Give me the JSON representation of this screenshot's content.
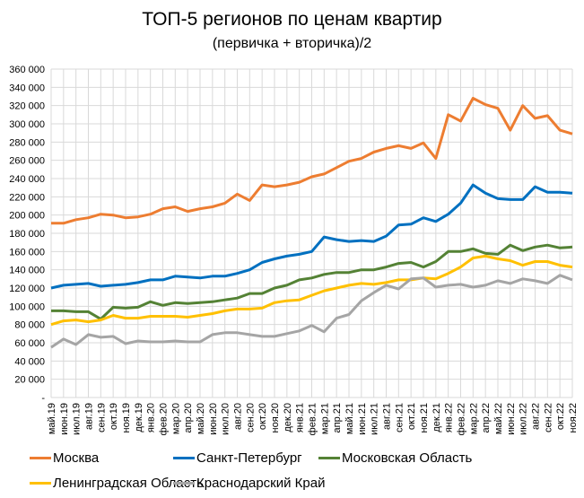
{
  "chart_data": {
    "type": "line",
    "title": "ТОП-5 регионов по ценам квартир",
    "subtitle": "(первичка + вторичка)/2",
    "ylim": [
      0,
      360000
    ],
    "yticks": [
      0,
      20000,
      40000,
      60000,
      80000,
      100000,
      120000,
      140000,
      160000,
      180000,
      200000,
      220000,
      240000,
      260000,
      280000,
      300000,
      320000,
      340000,
      360000
    ],
    "ytick_labels": [
      "-",
      "20 000",
      "40 000",
      "60 000",
      "80 000",
      "100 000",
      "120 000",
      "140 000",
      "160 000",
      "180 000",
      "200 000",
      "220 000",
      "240 000",
      "260 000",
      "280 000",
      "300 000",
      "320 000",
      "340 000",
      "360 000"
    ],
    "grid": true,
    "legend": "bottom",
    "categories": [
      "май.19",
      "июн.19",
      "июл.19",
      "авг.19",
      "сен.19",
      "окт.19",
      "ноя.19",
      "дек.19",
      "янв.20",
      "фев.20",
      "мар.20",
      "апр.20",
      "май.20",
      "июн.20",
      "июл.20",
      "авг.20",
      "сен.20",
      "окт.20",
      "ноя.20",
      "дек.20",
      "янв.21",
      "фев.21",
      "мар.21",
      "апр.21",
      "май.21",
      "июн.21",
      "июл.21",
      "авг.21",
      "сен.21",
      "окт.21",
      "ноя.21",
      "дек.21",
      "янв.22",
      "фев.22",
      "мар.22",
      "апр.22",
      "май.22",
      "июн.22",
      "июл.22",
      "авг.22",
      "сен.22",
      "окт.22",
      "ноя.22"
    ],
    "series": [
      {
        "name": "Москва",
        "color": "#ED7D31",
        "values": [
          191000,
          191000,
          195000,
          197000,
          201000,
          200000,
          197000,
          198000,
          201000,
          207000,
          209000,
          204000,
          207000,
          209000,
          213000,
          223000,
          216000,
          233000,
          231000,
          233000,
          236000,
          242000,
          245000,
          252000,
          259000,
          262000,
          269000,
          273000,
          276000,
          273000,
          279000,
          262000,
          310000,
          303000,
          328000,
          321000,
          317000,
          293000,
          320000,
          306000,
          309000,
          293000,
          289000
        ]
      },
      {
        "name": "Санкт-Петербург",
        "color": "#0070C0",
        "values": [
          120000,
          123000,
          124000,
          125000,
          122000,
          123000,
          124000,
          126000,
          129000,
          129000,
          133000,
          132000,
          131000,
          133000,
          133000,
          136000,
          140000,
          148000,
          152000,
          155000,
          157000,
          160000,
          176000,
          173000,
          171000,
          172000,
          171000,
          177000,
          189000,
          190000,
          197000,
          193000,
          201000,
          213000,
          233000,
          224000,
          218000,
          217000,
          217000,
          231000,
          225000,
          225000,
          224000
        ]
      },
      {
        "name": "Московская Область",
        "color": "#548235",
        "values": [
          95000,
          95000,
          94000,
          94000,
          86000,
          99000,
          98000,
          99000,
          105000,
          101000,
          104000,
          103000,
          104000,
          105000,
          107000,
          109000,
          114000,
          114000,
          120000,
          123000,
          129000,
          131000,
          135000,
          137000,
          137000,
          140000,
          140000,
          143000,
          147000,
          148000,
          143000,
          149000,
          160000,
          160000,
          163000,
          158000,
          157000,
          167000,
          161000,
          165000,
          167000,
          164000,
          165000
        ]
      },
      {
        "name": "Ленинградская Область",
        "color": "#FFC000",
        "values": [
          80000,
          84000,
          85000,
          83000,
          85000,
          90000,
          87000,
          87000,
          89000,
          89000,
          89000,
          88000,
          90000,
          92000,
          95000,
          97000,
          97000,
          98000,
          104000,
          106000,
          107000,
          112000,
          117000,
          120000,
          123000,
          125000,
          124000,
          126000,
          129000,
          129000,
          131000,
          130000,
          136000,
          143000,
          153000,
          155000,
          152000,
          150000,
          145000,
          149000,
          149000,
          145000,
          143000
        ]
      },
      {
        "name": "Краснодарский Край",
        "color": "#A5A5A5",
        "values": [
          55000,
          64000,
          58000,
          69000,
          66000,
          67000,
          59000,
          62000,
          61000,
          61000,
          62000,
          61000,
          61000,
          69000,
          71000,
          71000,
          69000,
          67000,
          67000,
          70000,
          73000,
          79000,
          72000,
          87000,
          91000,
          106000,
          115000,
          123000,
          119000,
          130000,
          131000,
          121000,
          123000,
          124000,
          121000,
          123000,
          128000,
          125000,
          130000,
          128000,
          125000,
          134000,
          129000
        ]
      }
    ]
  }
}
